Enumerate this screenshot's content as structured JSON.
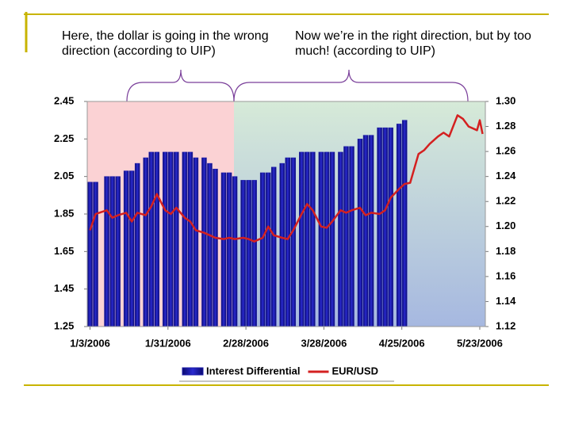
{
  "chart_data": {
    "type": "bar_line",
    "annotations": [
      "Here, the dollar is going in the wrong direction (according to UIP)",
      "Now we’re in the right direction, but by too much! (according to UIP)"
    ],
    "x": [
      "1/3/2006",
      "1/5/2006",
      "1/9/2006",
      "1/11/2006",
      "1/13/2006",
      "1/16/2006",
      "1/18/2006",
      "1/20/2006",
      "1/23/2006",
      "1/25/2006",
      "1/27/2006",
      "1/30/2006",
      "2/1/2006",
      "2/3/2006",
      "2/6/2006",
      "2/8/2006",
      "2/10/2006",
      "2/13/2006",
      "2/15/2006",
      "2/17/2006",
      "2/20/2006",
      "2/22/2006",
      "2/24/2006",
      "2/27/2006",
      "3/1/2006",
      "3/3/2006",
      "3/6/2006",
      "3/8/2006",
      "3/10/2006",
      "3/13/2006",
      "3/15/2006",
      "3/17/2006",
      "3/20/2006",
      "3/22/2006",
      "3/24/2006",
      "3/27/2006",
      "3/29/2006",
      "3/31/2006",
      "4/3/2006",
      "4/5/2006",
      "4/7/2006",
      "4/10/2006",
      "4/12/2006",
      "4/14/2006",
      "4/17/2006",
      "4/19/2006",
      "4/21/2006",
      "4/24/2006",
      "4/26/2006",
      "4/28/2006",
      "5/1/2006",
      "5/3/2006",
      "5/5/2006",
      "5/8/2006",
      "5/10/2006",
      "5/12/2006",
      "5/15/2006",
      "5/17/2006",
      "5/19/2006",
      "5/22/2006",
      "5/23/2006",
      "5/24/2006"
    ],
    "xlim": [
      "1/2/2006",
      "5/25/2006"
    ],
    "xticks": [
      "1/3/2006",
      "1/31/2006",
      "2/28/2006",
      "3/28/2006",
      "4/25/2006",
      "5/23/2006"
    ],
    "ylim": [
      1.25,
      2.45
    ],
    "yticks": [
      2.45,
      2.25,
      2.05,
      1.85,
      1.65,
      1.45,
      1.25
    ],
    "y2lim": [
      1.12,
      1.3
    ],
    "y2ticks": [
      {
        "value": 1.3,
        "label": "1.30"
      },
      1.28,
      1.26,
      1.24,
      1.22,
      {
        "value": 1.2,
        "label": "1.20"
      },
      1.18,
      1.16,
      1.14,
      1.12
    ],
    "series": [
      {
        "name": "Interest Differential",
        "type": "bar",
        "color": "#1c1ca8",
        "values": [
          2.02,
          2.02,
          2.05,
          2.05,
          2.05,
          2.08,
          2.08,
          2.12,
          2.15,
          2.18,
          2.18,
          2.18,
          2.18,
          2.18,
          2.18,
          2.18,
          2.15,
          2.15,
          2.12,
          2.09,
          2.07,
          2.07,
          2.05,
          2.03,
          2.03,
          2.03,
          2.07,
          2.07,
          2.1,
          2.12,
          2.15,
          2.15,
          2.18,
          2.18,
          2.18,
          2.18,
          2.18,
          2.18,
          2.18,
          2.21,
          2.21,
          2.25,
          2.27,
          2.27,
          2.31,
          2.31,
          2.31,
          2.33,
          2.35,
          null,
          null,
          null,
          null,
          null,
          null,
          null,
          null,
          null,
          null,
          null,
          null,
          null
        ]
      },
      {
        "name": "EUR/USD",
        "type": "line",
        "axis": "y2",
        "color": "#d42020",
        "values": [
          1.197,
          1.21,
          1.213,
          1.207,
          1.209,
          1.211,
          1.204,
          1.211,
          1.209,
          1.216,
          1.226,
          1.213,
          1.21,
          1.215,
          1.207,
          1.204,
          1.197,
          1.195,
          1.193,
          1.191,
          1.19,
          1.191,
          1.19,
          1.191,
          1.19,
          1.188,
          1.191,
          1.2,
          1.193,
          1.191,
          1.19,
          1.197,
          1.21,
          1.218,
          1.213,
          1.2,
          1.199,
          1.204,
          1.213,
          1.211,
          1.213,
          1.215,
          1.209,
          1.211,
          1.21,
          1.213,
          1.223,
          1.23,
          1.234,
          1.235,
          1.258,
          1.261,
          1.266,
          1.272,
          1.275,
          1.272,
          1.289,
          1.286,
          1.28,
          1.277,
          1.285,
          1.274
        ]
      }
    ],
    "legend": "bottom"
  }
}
